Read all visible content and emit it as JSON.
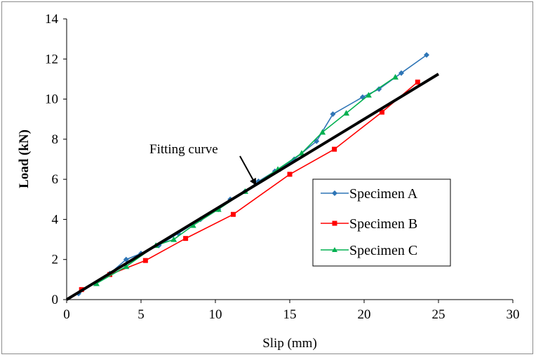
{
  "chart_data": {
    "type": "line",
    "xlabel": "Slip (mm)",
    "ylabel": "Load (kN)",
    "xlim": [
      0,
      30
    ],
    "ylim": [
      0,
      14
    ],
    "xticks": [
      "0",
      "5",
      "10",
      "15",
      "20",
      "25",
      "30"
    ],
    "yticks": [
      "0",
      "2",
      "4",
      "6",
      "8",
      "10",
      "12",
      "14"
    ],
    "grid": false,
    "legend_position": "right",
    "series": [
      {
        "name": "Specimen A",
        "color": "#2e75b6",
        "marker": "diamond",
        "x": [
          0.8,
          2.9,
          4.0,
          5.0,
          6.2,
          7.5,
          9.0,
          10.2,
          11.0,
          12.0,
          12.9,
          14.0,
          15.3,
          16.8,
          17.9,
          19.9,
          21.0,
          22.5,
          24.2
        ],
        "y": [
          0.3,
          1.3,
          2.0,
          2.3,
          2.7,
          3.3,
          4.0,
          4.5,
          5.0,
          5.4,
          5.9,
          6.4,
          7.0,
          7.9,
          9.25,
          10.1,
          10.5,
          11.3,
          12.2
        ]
      },
      {
        "name": "Specimen B",
        "color": "#ff0000",
        "marker": "square",
        "x": [
          1.0,
          2.9,
          5.3,
          8.0,
          11.2,
          15.0,
          18.0,
          21.2,
          23.6
        ],
        "y": [
          0.5,
          1.25,
          1.95,
          3.05,
          4.25,
          6.25,
          7.5,
          9.35,
          10.85
        ]
      },
      {
        "name": "Specimen C",
        "color": "#00b050",
        "marker": "triangle",
        "x": [
          2.0,
          4.0,
          6.0,
          7.2,
          8.5,
          10.2,
          12.0,
          14.2,
          15.8,
          17.2,
          18.8,
          20.3,
          22.1
        ],
        "y": [
          0.8,
          1.65,
          2.7,
          3.0,
          3.7,
          4.5,
          5.4,
          6.5,
          7.3,
          8.35,
          9.3,
          10.2,
          11.1
        ]
      }
    ],
    "fit_line": {
      "x": [
        0,
        25
      ],
      "y": [
        0,
        11.25
      ],
      "color": "#000000"
    },
    "annotation": {
      "text": "Fitting curve",
      "arrow_to": [
        12.7,
        5.75
      ]
    }
  }
}
